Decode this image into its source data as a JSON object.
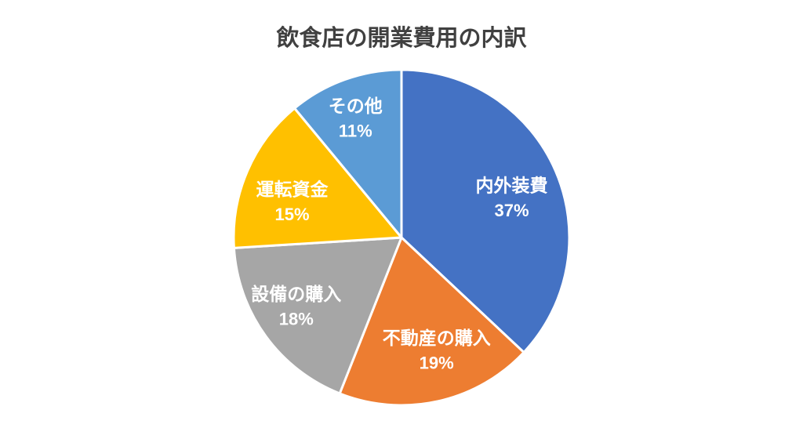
{
  "chart_data": {
    "type": "pie",
    "title": "飲食店の開業費用の内訳",
    "direction": "clockwise",
    "start_angle_deg": 0,
    "legend": "none",
    "labels_position": "inside",
    "label_color": "#FFFFFF",
    "separator_color": "#FFFFFF",
    "title_color": "#404040",
    "background_color": "#FFFFFF",
    "categories": [
      "内外装費",
      "不動産の購入",
      "設備の購入",
      "運転資金",
      "その他"
    ],
    "values": [
      37,
      19,
      18,
      15,
      11
    ],
    "slices": [
      {
        "label": "内外装費",
        "value": 37,
        "pct_label": "37%",
        "color": "#4472C4"
      },
      {
        "label": "不動産の購入",
        "value": 19,
        "pct_label": "19%",
        "color": "#ED7D31"
      },
      {
        "label": "設備の購入",
        "value": 18,
        "pct_label": "18%",
        "color": "#A6A6A6"
      },
      {
        "label": "運転資金",
        "value": 15,
        "pct_label": "15%",
        "color": "#FFC000"
      },
      {
        "label": "その他",
        "value": 11,
        "pct_label": "11%",
        "color": "#5B9BD5"
      }
    ]
  }
}
